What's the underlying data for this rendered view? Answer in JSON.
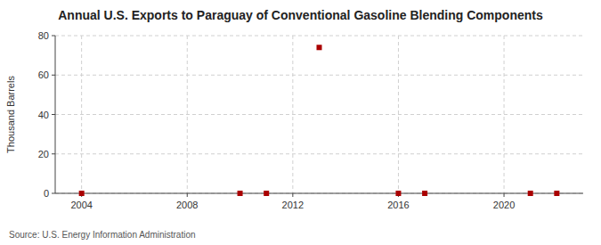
{
  "chart_data": {
    "type": "scatter",
    "title": "Annual U.S. Exports to Paraguay of Conventional Gasoline Blending Components",
    "ylabel": "Thousand Barrels",
    "source": "Source: U.S. Energy Information Administration",
    "x": [
      2004,
      2010,
      2011,
      2013,
      2016,
      2017,
      2021,
      2022
    ],
    "values": [
      0,
      0,
      0,
      74,
      0,
      0,
      0,
      0
    ],
    "color": "#aa0000",
    "marker": "square",
    "xlim": [
      2003,
      2023
    ],
    "ylim": [
      0,
      80
    ],
    "xticks": [
      2004,
      2008,
      2012,
      2016,
      2020
    ],
    "yticks": [
      0,
      20,
      40,
      60,
      80
    ],
    "grid": true
  }
}
